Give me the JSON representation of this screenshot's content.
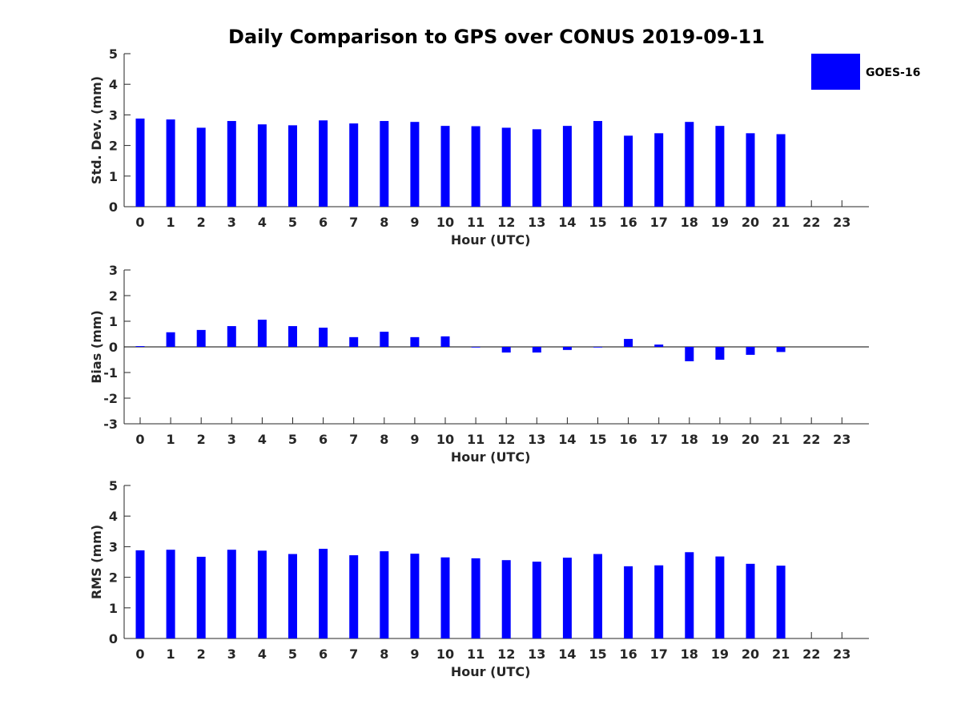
{
  "chart_data": {
    "type": "bar",
    "title": "Daily Comparison to GPS over CONUS 2019-09-11",
    "legend": {
      "position": "top-right",
      "entries": [
        "GOES-16"
      ]
    },
    "series_color": "#0000ff",
    "panels": [
      {
        "id": "std",
        "ylabel": "Std. Dev. (mm)",
        "xlabel": "Hour (UTC)",
        "ylim": [
          0,
          5
        ],
        "yticks": [
          0,
          1,
          2,
          3,
          4,
          5
        ],
        "xtick_labels": [
          "0",
          "1",
          "2",
          "3",
          "4",
          "5",
          "6",
          "7",
          "8",
          "9",
          "10",
          "11",
          "12",
          "13",
          "14",
          "15",
          "16",
          "17",
          "18",
          "19",
          "20",
          "21",
          "22",
          "23"
        ],
        "series": [
          {
            "name": "GOES-16",
            "values": [
              2.88,
              2.85,
              2.58,
              2.8,
              2.69,
              2.66,
              2.82,
              2.72,
              2.8,
              2.77,
              2.64,
              2.63,
              2.58,
              2.53,
              2.64,
              2.8,
              2.32,
              2.4,
              2.77,
              2.64,
              2.4,
              2.37,
              null,
              null
            ]
          }
        ]
      },
      {
        "id": "bias",
        "ylabel": "Bias (mm)",
        "xlabel": "Hour (UTC)",
        "ylim": [
          -3,
          3
        ],
        "yticks": [
          -3,
          -2,
          -1,
          0,
          1,
          2,
          3
        ],
        "xtick_labels": [
          "0",
          "1",
          "2",
          "3",
          "4",
          "5",
          "6",
          "7",
          "8",
          "9",
          "10",
          "11",
          "12",
          "13",
          "14",
          "15",
          "16",
          "17",
          "18",
          "19",
          "20",
          "21",
          "22",
          "23"
        ],
        "series": [
          {
            "name": "GOES-16",
            "values": [
              0.03,
              0.57,
              0.66,
              0.81,
              1.06,
              0.81,
              0.75,
              0.38,
              0.59,
              0.38,
              0.41,
              -0.02,
              -0.22,
              -0.22,
              -0.12,
              -0.02,
              0.31,
              0.09,
              -0.56,
              -0.5,
              -0.31,
              -0.2,
              null,
              null
            ]
          }
        ]
      },
      {
        "id": "rms",
        "ylabel": "RMS (mm)",
        "xlabel": "Hour (UTC)",
        "ylim": [
          0,
          5
        ],
        "yticks": [
          0,
          1,
          2,
          3,
          4,
          5
        ],
        "xtick_labels": [
          "0",
          "1",
          "2",
          "3",
          "4",
          "5",
          "6",
          "7",
          "8",
          "9",
          "10",
          "11",
          "12",
          "13",
          "14",
          "15",
          "16",
          "17",
          "18",
          "19",
          "20",
          "21",
          "22",
          "23"
        ],
        "series": [
          {
            "name": "GOES-16",
            "values": [
              2.88,
              2.9,
              2.67,
              2.9,
              2.87,
              2.76,
              2.93,
              2.72,
              2.85,
              2.77,
              2.65,
              2.62,
              2.56,
              2.51,
              2.64,
              2.76,
              2.36,
              2.39,
              2.82,
              2.68,
              2.44,
              2.38,
              null,
              null
            ]
          }
        ]
      }
    ]
  }
}
